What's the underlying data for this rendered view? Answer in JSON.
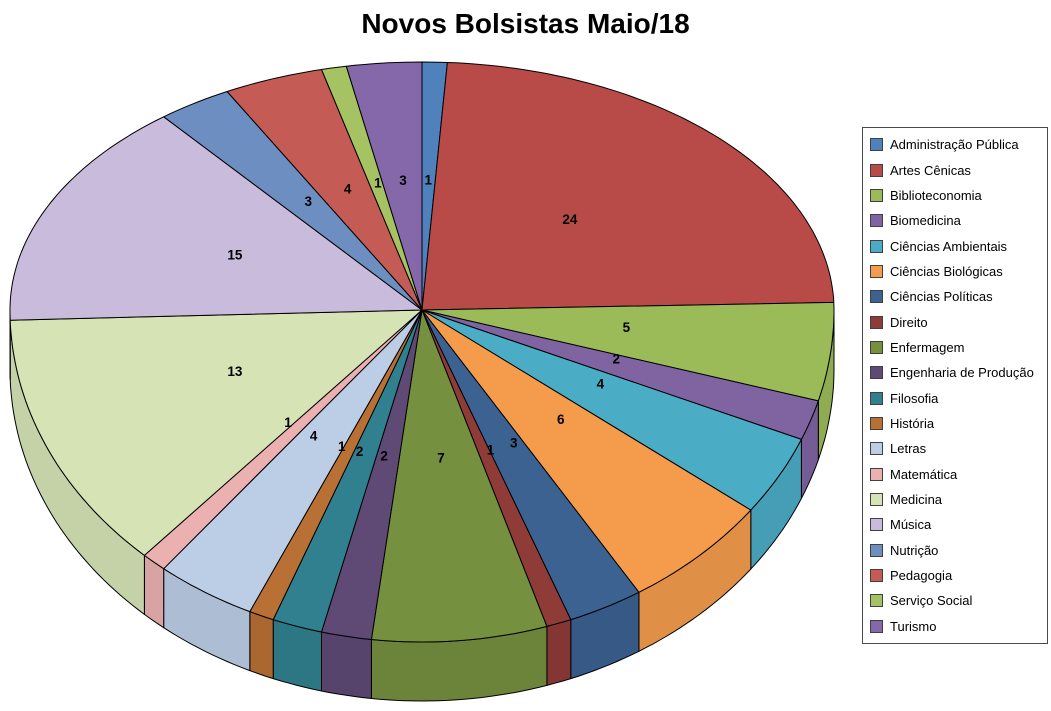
{
  "title": "Novos Bolsistas Maio/18",
  "background_color": "#FFFFFF",
  "chart_data": {
    "type": "pie",
    "style": "3d-pie",
    "title": "Novos Bolsistas Maio/18",
    "direction": "clockwise",
    "start_angle_deg": 0,
    "legend_position": "right",
    "data_labels_shown": true,
    "total": 102,
    "categories": [
      "Administração Pública",
      "Artes Cênicas",
      "Biblioteconomia",
      "Biomedicina",
      "Ciências Ambientais",
      "Ciências Biológicas",
      "Ciências Políticas",
      "Direito",
      "Enfermagem",
      "Engenharia de Produção",
      "Filosofia",
      "História",
      "Letras",
      "Matemática",
      "Medicina",
      "Música",
      "Nutrição",
      "Pedagogia",
      "Serviço Social",
      "Turismo"
    ],
    "values": [
      1,
      24,
      5,
      2,
      4,
      6,
      3,
      1,
      7,
      2,
      2,
      1,
      4,
      1,
      13,
      15,
      3,
      4,
      1,
      3
    ],
    "colors": [
      "#4F81BD",
      "#B84A47",
      "#9BBB59",
      "#8064A2",
      "#4BACC6",
      "#F49B4C",
      "#3B6291",
      "#8F3B38",
      "#75903E",
      "#5E4A75",
      "#31808F",
      "#B97034",
      "#BCCEE6",
      "#EBB1B1",
      "#D6E3B5",
      "#C8BBDB",
      "#6C8EC1",
      "#C45B54",
      "#A6C364",
      "#8568A9"
    ],
    "label_color": "#000000",
    "outline_color": "#000000"
  }
}
